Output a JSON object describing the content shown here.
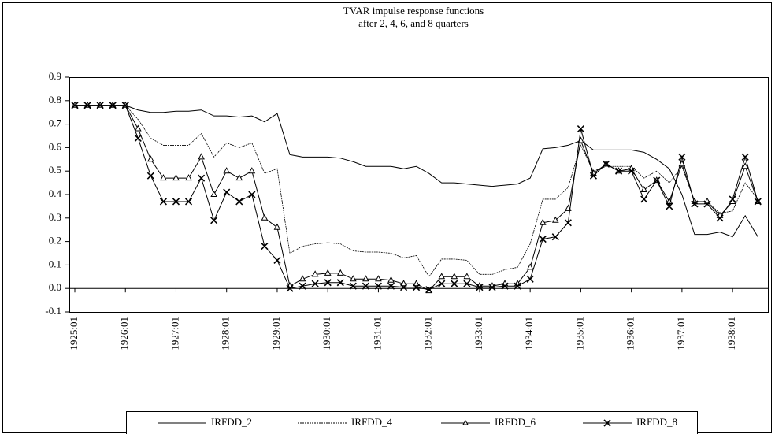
{
  "chart_data": {
    "type": "line",
    "title": "TVAR impulse response functions",
    "subtitle": "after 2, 4, 6, and 8 quarters",
    "categories": [
      "1925:01",
      null,
      null,
      null,
      "1926:01",
      null,
      null,
      null,
      "1927:01",
      null,
      null,
      null,
      "1928:01",
      null,
      null,
      null,
      "1929:01",
      null,
      null,
      null,
      "1930:01",
      null,
      null,
      null,
      "1931:01",
      null,
      null,
      null,
      "1932:01",
      null,
      null,
      null,
      "1933:01",
      null,
      null,
      null,
      "1934:01",
      null,
      null,
      null,
      "1935:01",
      null,
      null,
      null,
      "1936:01",
      null,
      null,
      null,
      "1937:01",
      null,
      null,
      null,
      "1938:01",
      null,
      null
    ],
    "ylim": [
      -0.1,
      0.9
    ],
    "yticks": [
      -0.1,
      {
        "value": 0,
        "label": "0.0"
      },
      0.1,
      0.2,
      0.3,
      0.4,
      0.5,
      0.6,
      0.7,
      0.8,
      0.9
    ],
    "grid": false,
    "legend": "bottom",
    "series": [
      {
        "name": "IRFDD_2",
        "color": "#000000",
        "line_style": "solid",
        "marker": "none",
        "values": [
          0.78,
          0.78,
          0.78,
          0.78,
          0.78,
          0.76,
          0.75,
          0.75,
          0.755,
          0.755,
          0.76,
          0.735,
          0.735,
          0.73,
          0.735,
          0.71,
          0.745,
          0.57,
          0.56,
          0.56,
          0.56,
          0.555,
          0.54,
          0.52,
          0.52,
          0.52,
          0.51,
          0.52,
          0.49,
          0.45,
          0.45,
          0.445,
          0.44,
          0.435,
          0.44,
          0.445,
          0.47,
          0.595,
          0.6,
          0.61,
          0.63,
          0.59,
          0.59,
          0.59,
          0.59,
          0.58,
          0.55,
          0.51,
          0.4,
          0.23,
          0.23,
          0.24,
          0.22,
          0.31,
          0.22
        ]
      },
      {
        "name": "IRFDD_4",
        "color": "#000000",
        "line_style": "dotted",
        "marker": "none",
        "values": [
          0.78,
          0.78,
          0.78,
          0.78,
          0.78,
          0.72,
          0.64,
          0.61,
          0.61,
          0.61,
          0.66,
          0.56,
          0.62,
          0.6,
          0.62,
          0.49,
          0.51,
          0.15,
          0.18,
          0.19,
          0.195,
          0.19,
          0.16,
          0.155,
          0.155,
          0.15,
          0.13,
          0.14,
          0.05,
          0.125,
          0.125,
          0.12,
          0.06,
          0.06,
          0.08,
          0.09,
          0.19,
          0.38,
          0.38,
          0.43,
          0.61,
          0.5,
          0.52,
          0.52,
          0.52,
          0.47,
          0.5,
          0.45,
          0.52,
          0.37,
          0.37,
          0.32,
          0.33,
          0.45,
          0.38
        ]
      },
      {
        "name": "IRFDD_6",
        "color": "#000000",
        "line_style": "solid",
        "marker": "triangle",
        "values": [
          0.78,
          0.78,
          0.78,
          0.78,
          0.78,
          0.68,
          0.55,
          0.47,
          0.47,
          0.47,
          0.56,
          0.4,
          0.5,
          0.47,
          0.5,
          0.3,
          0.26,
          0.01,
          0.04,
          0.06,
          0.065,
          0.065,
          0.04,
          0.04,
          0.04,
          0.035,
          0.02,
          0.02,
          -0.01,
          0.05,
          0.05,
          0.05,
          0.01,
          0.01,
          0.02,
          0.02,
          0.09,
          0.28,
          0.29,
          0.34,
          0.63,
          0.49,
          0.53,
          0.5,
          0.51,
          0.42,
          0.46,
          0.37,
          0.53,
          0.37,
          0.37,
          0.31,
          0.37,
          0.52,
          0.37
        ]
      },
      {
        "name": "IRFDD_8",
        "color": "#000000",
        "line_style": "solid",
        "marker": "x",
        "values": [
          0.78,
          0.78,
          0.78,
          0.78,
          0.78,
          0.64,
          0.48,
          0.37,
          0.37,
          0.37,
          0.47,
          0.29,
          0.41,
          0.37,
          0.4,
          0.18,
          0.12,
          0.0,
          0.01,
          0.02,
          0.025,
          0.025,
          0.01,
          0.01,
          0.01,
          0.01,
          0.005,
          0.005,
          -0.005,
          0.02,
          0.02,
          0.02,
          0.005,
          0.005,
          0.01,
          0.01,
          0.04,
          0.21,
          0.22,
          0.28,
          0.68,
          0.48,
          0.53,
          0.5,
          0.5,
          0.38,
          0.46,
          0.35,
          0.56,
          0.36,
          0.36,
          0.3,
          0.38,
          0.56,
          0.37
        ]
      }
    ]
  }
}
